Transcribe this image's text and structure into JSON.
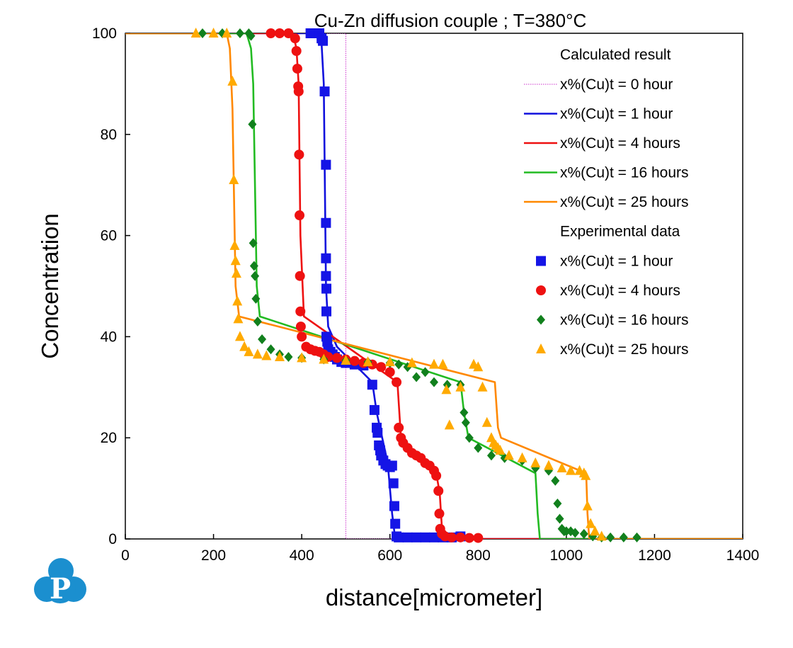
{
  "chart_data": {
    "type": "scatter",
    "title": "Cu-Zn diffusion couple ; T=380°C",
    "xlabel": "distance[micrometer]",
    "ylabel": "Concentration",
    "xlim": [
      0,
      1400
    ],
    "ylim": [
      0,
      100
    ],
    "xticks": [
      "0",
      "200",
      "400",
      "600",
      "800",
      "1000",
      "1200",
      "1400"
    ],
    "yticks": [
      "0",
      "20",
      "40",
      "60",
      "80",
      "100"
    ],
    "grid": false,
    "legend_position": "top-right",
    "legend_headers": {
      "calculated": "Calculated result",
      "experimental": "Experimental data"
    },
    "calculated": [
      {
        "name": "x%(Cu)t = 0  hour",
        "color": "#cc33cc",
        "style": "dotted",
        "x": [
          0,
          500,
          500,
          1400
        ],
        "y": [
          100,
          100,
          0,
          0
        ]
      },
      {
        "name": "x%(Cu)t = 1  hour",
        "color": "#1010dd",
        "style": "solid",
        "x": [
          0,
          440,
          445,
          450,
          455,
          460,
          480,
          560,
          570,
          595,
          605,
          612,
          1400
        ],
        "y": [
          100,
          100,
          98,
          90,
          50,
          42,
          38,
          31,
          25,
          15,
          5,
          0,
          0
        ]
      },
      {
        "name": "x%(Cu)t = 4  hours",
        "color": "#ee1111",
        "style": "solid",
        "x": [
          0,
          380,
          388,
          393,
          397,
          405,
          617,
          625,
          632,
          705,
          713,
          718,
          725,
          1400
        ],
        "y": [
          100,
          100,
          97,
          90,
          60,
          44,
          31,
          20,
          18,
          13,
          9,
          2,
          0,
          0
        ]
      },
      {
        "name": "x%(Cu)t = 16 hours",
        "color": "#22bb22",
        "style": "solid",
        "x": [
          0,
          275,
          285,
          290,
          298,
          305,
          760,
          768,
          778,
          930,
          935,
          940,
          1400
        ],
        "y": [
          100,
          100,
          97,
          90,
          50,
          44,
          31,
          25,
          20,
          13,
          5,
          0,
          0
        ]
      },
      {
        "name": "x%(Cu)t = 25 hours",
        "color": "#ff8800",
        "style": "solid",
        "x": [
          0,
          230,
          237,
          243,
          250,
          258,
          838,
          845,
          852,
          1045,
          1048,
          1052,
          1400
        ],
        "y": [
          100,
          100,
          97,
          85,
          50,
          44,
          31,
          22,
          20,
          13,
          5,
          0,
          0
        ]
      }
    ],
    "experimental": [
      {
        "name": "x%(Cu)t = 1  hour",
        "color": "#1515e6",
        "marker": "square",
        "x": [
          420,
          430,
          440,
          445,
          448,
          452,
          455,
          455,
          455,
          455,
          456,
          456,
          456,
          458,
          460,
          465,
          470,
          475,
          480,
          490,
          500,
          520,
          540,
          560,
          565,
          570,
          572,
          575,
          578,
          580,
          585,
          590,
          595,
          600,
          605,
          608,
          610,
          612,
          615,
          620,
          640,
          660,
          680,
          700,
          720,
          740,
          760
        ],
        "y": [
          100,
          100,
          100,
          99,
          98.5,
          88.5,
          74,
          62.5,
          55.5,
          52,
          49.5,
          45,
          40,
          39,
          37.5,
          37,
          36.5,
          36,
          35.5,
          35,
          34.8,
          34.5,
          34.3,
          30.5,
          25.5,
          22,
          21,
          18.5,
          17.5,
          16.5,
          15.5,
          14.8,
          14.5,
          14.2,
          14.5,
          11,
          6.5,
          3,
          0.5,
          0.3,
          0.3,
          0.3,
          0.3,
          0.3,
          0.3,
          0.3,
          0.5
        ]
      },
      {
        "name": "x%(Cu)t = 4  hours",
        "color": "#ee1111",
        "marker": "circle",
        "x": [
          330,
          350,
          370,
          385,
          388,
          390,
          392,
          393,
          394,
          395,
          396,
          397,
          398,
          400,
          410,
          420,
          430,
          440,
          450,
          460,
          480,
          500,
          520,
          540,
          560,
          580,
          600,
          615,
          620,
          625,
          630,
          640,
          650,
          660,
          670,
          680,
          690,
          700,
          705,
          710,
          712,
          714,
          718,
          725,
          740,
          760,
          780,
          800
        ],
        "y": [
          100,
          100,
          100,
          99,
          96.5,
          93,
          89.5,
          88.5,
          76,
          64,
          52,
          45,
          42,
          40,
          38,
          37.5,
          37.2,
          37,
          36.5,
          36,
          35.8,
          35.5,
          35.2,
          34.8,
          34.5,
          34,
          33,
          31,
          22,
          20,
          19,
          18,
          17,
          16.5,
          16,
          15,
          14.5,
          13.5,
          12.5,
          9.5,
          5,
          2,
          1,
          0.5,
          0.3,
          0.3,
          0.2,
          0.2
        ]
      },
      {
        "name": "x%(Cu)t = 16 hours",
        "color": "#11801d",
        "marker": "diamond",
        "x": [
          175,
          220,
          260,
          280,
          285,
          288,
          290,
          292,
          294,
          296,
          300,
          310,
          330,
          350,
          370,
          400,
          450,
          500,
          550,
          600,
          620,
          640,
          660,
          680,
          700,
          730,
          760,
          768,
          772,
          780,
          800,
          830,
          860,
          900,
          930,
          960,
          975,
          980,
          985,
          990,
          995,
          1000,
          1010,
          1020,
          1040,
          1060,
          1080,
          1100,
          1130,
          1160
        ],
        "y": [
          100,
          100,
          100,
          100,
          99.5,
          82,
          58.5,
          54,
          52,
          47.5,
          43,
          39.5,
          37.5,
          36.5,
          36,
          35.8,
          35.5,
          35.3,
          35,
          34.8,
          34.5,
          34,
          32,
          33,
          31,
          30.5,
          30.5,
          25,
          23,
          20,
          18,
          16.5,
          16,
          15.5,
          14,
          13.5,
          11.5,
          7,
          4,
          2,
          1.5,
          1.5,
          1.5,
          1.2,
          1,
          0.5,
          0.3,
          0.3,
          0.3,
          0.3
        ]
      },
      {
        "name": "x%(Cu)t = 25 hours",
        "color": "#ffaa00",
        "marker": "triangle",
        "x": [
          160,
          200,
          230,
          243,
          246,
          248,
          250,
          252,
          254,
          256,
          260,
          270,
          280,
          300,
          320,
          350,
          400,
          450,
          500,
          550,
          600,
          650,
          700,
          720,
          728,
          735,
          760,
          790,
          800,
          810,
          820,
          830,
          835,
          840,
          845,
          850,
          870,
          900,
          930,
          960,
          990,
          1010,
          1030,
          1040,
          1044,
          1048,
          1055,
          1065,
          1080
        ],
        "y": [
          100,
          100,
          100,
          90.5,
          71,
          58,
          55,
          52.5,
          47,
          43.5,
          40,
          38,
          37,
          36.5,
          36.2,
          36,
          35.8,
          35.5,
          35.3,
          35,
          35,
          34.8,
          34.5,
          34.5,
          29.5,
          22.5,
          30,
          34.5,
          34,
          30,
          23,
          20,
          19,
          18.5,
          18,
          17.5,
          16.5,
          16,
          15,
          14.5,
          14,
          13.5,
          13.5,
          13,
          12.5,
          6.5,
          3,
          1.5,
          0.5
        ]
      }
    ],
    "logo_label": "P"
  }
}
